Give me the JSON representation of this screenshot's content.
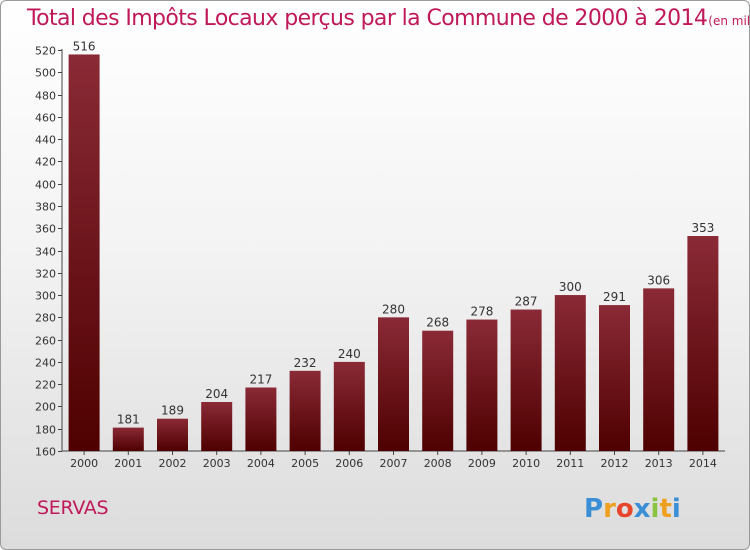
{
  "title": "Total des Impôts Locaux perçus par la Commune de 2000 à 2014",
  "unit": "(en milliers d'€)",
  "commune": "SERVAS",
  "logo_text": "Proxiti",
  "colors": {
    "title": "#c0195a",
    "bar_top": "#8a2a36",
    "bar_bottom": "#4e0000"
  },
  "chart_data": {
    "type": "bar",
    "title": "Total des Impôts Locaux perçus par la Commune de 2000 à 2014",
    "xlabel": "",
    "ylabel": "",
    "categories": [
      "2000",
      "2001",
      "2002",
      "2003",
      "2004",
      "2005",
      "2006",
      "2007",
      "2008",
      "2009",
      "2010",
      "2011",
      "2012",
      "2013",
      "2014"
    ],
    "values": [
      516,
      181,
      189,
      204,
      217,
      232,
      240,
      280,
      268,
      278,
      287,
      300,
      291,
      306,
      353
    ],
    "ylim": [
      160,
      520
    ],
    "yticks": [
      160,
      180,
      200,
      220,
      240,
      260,
      280,
      300,
      320,
      340,
      360,
      380,
      400,
      420,
      440,
      460,
      480,
      500,
      520
    ],
    "grid": false,
    "legend": "none"
  }
}
